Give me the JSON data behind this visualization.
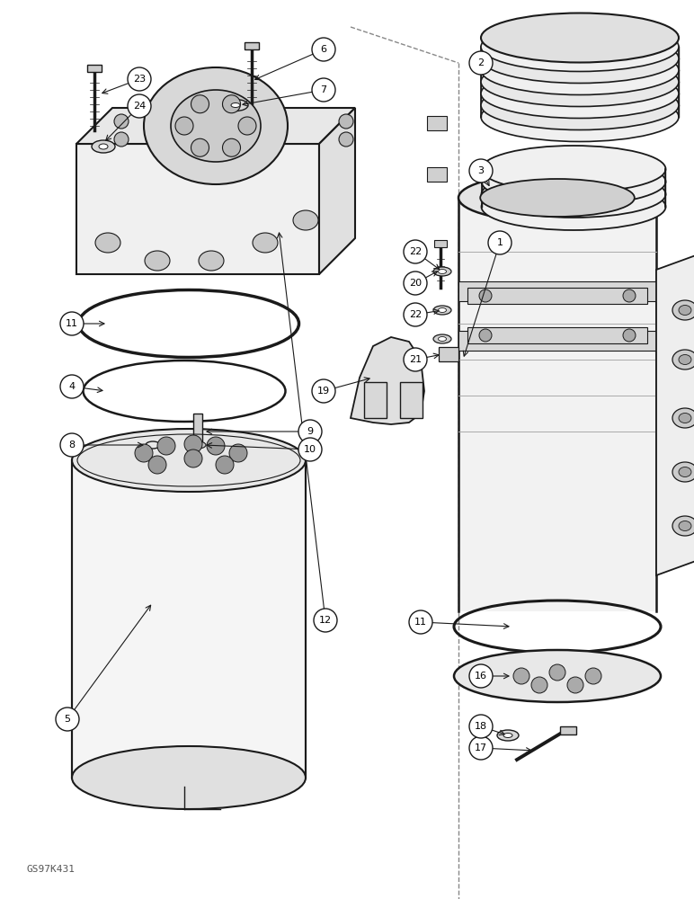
{
  "bg_color": "#ffffff",
  "line_color": "#1a1a1a",
  "figure_id": "GS97K431",
  "dashed_line_color": "#888888"
}
